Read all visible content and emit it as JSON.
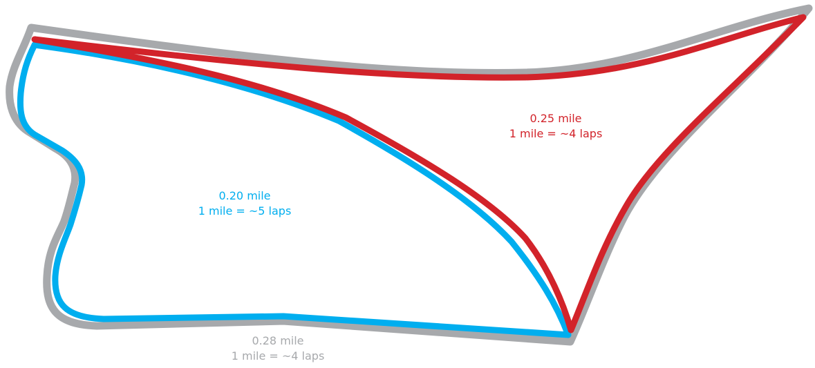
{
  "loops": [
    {
      "id": "gray",
      "color": "#a7a9ac",
      "distance": "0.28 mile",
      "laps": "1 mile = ~4 laps"
    },
    {
      "id": "blue",
      "color": "#00aeef",
      "distance": "0.20 mile",
      "laps": "1 mile = ~5 laps"
    },
    {
      "id": "red",
      "color": "#d2232a",
      "distance": "0.25 mile",
      "laps": "1 mile = ~4 laps"
    }
  ]
}
